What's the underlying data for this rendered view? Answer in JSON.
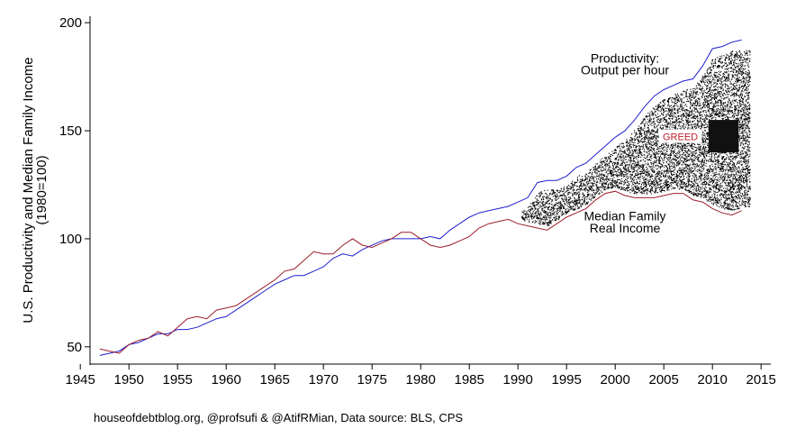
{
  "chart_data": {
    "type": "line",
    "ylabel_line1": "U.S. Productivity and Median Family Income",
    "ylabel_line2": "(1980=100)",
    "xlabel": "",
    "xlim": [
      1946,
      2016
    ],
    "ylim": [
      42,
      203
    ],
    "x_ticks": [
      1945,
      1950,
      1955,
      1960,
      1965,
      1970,
      1975,
      1980,
      1985,
      1990,
      1995,
      2000,
      2005,
      2010,
      2015
    ],
    "y_ticks": [
      50,
      100,
      150,
      200
    ],
    "grid": false,
    "series": [
      {
        "name": "Productivity: Output per hour",
        "color": "#1f1fd0",
        "x": [
          1947,
          1948,
          1949,
          1950,
          1951,
          1952,
          1953,
          1954,
          1955,
          1956,
          1957,
          1958,
          1959,
          1960,
          1961,
          1962,
          1963,
          1964,
          1965,
          1966,
          1967,
          1968,
          1969,
          1970,
          1971,
          1972,
          1973,
          1974,
          1975,
          1976,
          1977,
          1978,
          1979,
          1980,
          1981,
          1982,
          1983,
          1984,
          1985,
          1986,
          1987,
          1988,
          1989,
          1990,
          1991,
          1992,
          1993,
          1994,
          1995,
          1996,
          1997,
          1998,
          1999,
          2000,
          2001,
          2002,
          2003,
          2004,
          2005,
          2006,
          2007,
          2008,
          2009,
          2010,
          2011,
          2012,
          2013
        ],
        "y": [
          46,
          47,
          48,
          51,
          52,
          54,
          56,
          56,
          58,
          58,
          59,
          61,
          63,
          64,
          67,
          70,
          73,
          76,
          79,
          81,
          83,
          83,
          85,
          87,
          91,
          93,
          92,
          95,
          97,
          99,
          100,
          100,
          100,
          100,
          101,
          100,
          104,
          107,
          110,
          112,
          113,
          114,
          115,
          117,
          119,
          126,
          127,
          127,
          129,
          133,
          135,
          139,
          143,
          147,
          150,
          155,
          161,
          166,
          169,
          171,
          173,
          174,
          180,
          188,
          189,
          191,
          192
        ]
      },
      {
        "name": "Median Family Real Income",
        "color": "#9c1e2a",
        "x": [
          1947,
          1948,
          1949,
          1950,
          1951,
          1952,
          1953,
          1954,
          1955,
          1956,
          1957,
          1958,
          1959,
          1960,
          1961,
          1962,
          1963,
          1964,
          1965,
          1966,
          1967,
          1968,
          1969,
          1970,
          1971,
          1972,
          1973,
          1974,
          1975,
          1976,
          1977,
          1978,
          1979,
          1980,
          1981,
          1982,
          1983,
          1984,
          1985,
          1986,
          1987,
          1988,
          1989,
          1990,
          1991,
          1992,
          1993,
          1994,
          1995,
          1996,
          1997,
          1998,
          1999,
          2000,
          2001,
          2002,
          2003,
          2004,
          2005,
          2006,
          2007,
          2008,
          2009,
          2010,
          2011,
          2012,
          2013
        ],
        "y": [
          49,
          48,
          47,
          51,
          53,
          54,
          57,
          55,
          59,
          63,
          64,
          63,
          67,
          68,
          69,
          72,
          75,
          78,
          81,
          85,
          86,
          90,
          94,
          93,
          93,
          97,
          100,
          97,
          96,
          98,
          100,
          103,
          103,
          100,
          97,
          96,
          97,
          99,
          101,
          105,
          107,
          108,
          109,
          107,
          106,
          105,
          104,
          107,
          110,
          112,
          114,
          118,
          121,
          122,
          120,
          119,
          119,
          119,
          120,
          121,
          121,
          118,
          117,
          114,
          112,
          111,
          113
        ]
      }
    ],
    "annotations": [
      {
        "text": "Productivity:",
        "x": 2001.0,
        "y": 181.5
      },
      {
        "text": "Output per hour",
        "x": 2001.0,
        "y": 176.0
      },
      {
        "text": "Median Family",
        "x": 2001.0,
        "y": 108.5
      },
      {
        "text": "Real Income",
        "x": 2001.0,
        "y": 103.0
      },
      {
        "text": "GREED",
        "x": 2006.7,
        "y": 146.5
      }
    ],
    "source": "houseofdebtblog.org, @profsufi & @AtifRMian, Data source: BLS, CPS"
  }
}
